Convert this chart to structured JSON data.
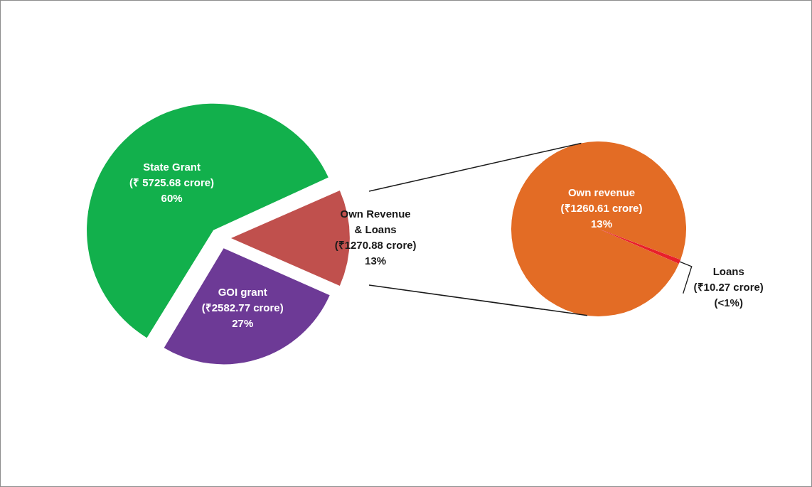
{
  "chart_data": [
    {
      "type": "pie",
      "categories": [
        "GOI grant",
        "State Grant",
        "Own Revenue & Loans"
      ],
      "values": [
        2582.77,
        5725.68,
        1270.88
      ],
      "colors": [
        "#6d3a96",
        "#12b04c",
        "#c0504d"
      ],
      "value_labels": [
        "(₹2582.77 crore)\n27%",
        "(₹ 5725.68 crore)\n60%",
        "(₹1270.88 crore)\n13%"
      ]
    },
    {
      "type": "pie",
      "categories": [
        "Own revenue",
        "Loans"
      ],
      "values": [
        1260.61,
        10.27
      ],
      "colors": [
        "#e36c25",
        "#e8202a"
      ],
      "value_labels": [
        "(₹1260.61 crore)\n13%",
        "(₹10.27 crore)\n(<1%)"
      ]
    }
  ]
}
